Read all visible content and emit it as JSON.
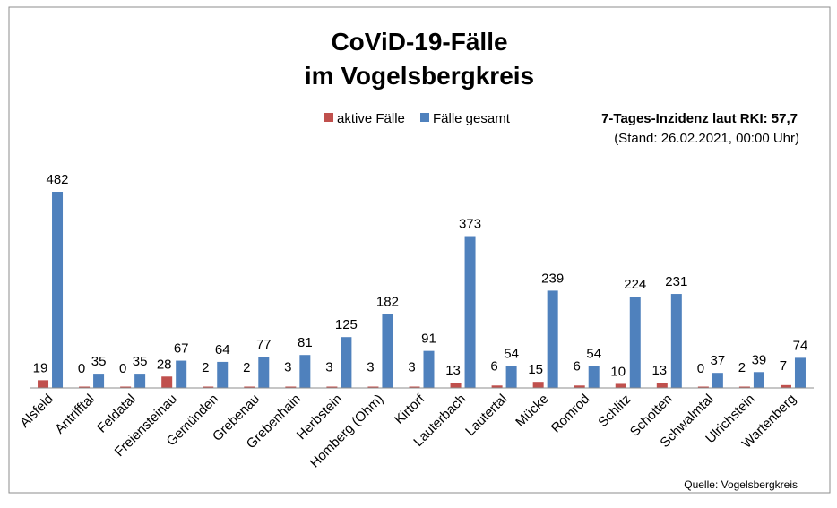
{
  "chart_data": {
    "type": "bar",
    "title": [
      "CoViD-19-Fälle",
      "im Vogelsbergkreis"
    ],
    "categories": [
      "Alsfeld",
      "Antrifftal",
      "Feldatal",
      "Freiensteinau",
      "Gemünden",
      "Grebenau",
      "Grebenhain",
      "Herbstein",
      "Homberg (Ohm)",
      "Kirtorf",
      "Lauterbach",
      "Lautertal",
      "Mücke",
      "Romrod",
      "Schlitz",
      "Schotten",
      "Schwalmtal",
      "Ulrichstein",
      "Wartenberg"
    ],
    "series": [
      {
        "name": "aktive Fälle",
        "color": "#c0504d",
        "values": [
          19,
          0,
          0,
          28,
          2,
          2,
          3,
          3,
          3,
          3,
          13,
          6,
          15,
          6,
          10,
          13,
          0,
          2,
          7
        ]
      },
      {
        "name": "Fälle gesamt",
        "color": "#4f81bd",
        "values": [
          482,
          35,
          35,
          67,
          64,
          77,
          81,
          125,
          182,
          91,
          373,
          54,
          239,
          54,
          224,
          231,
          37,
          39,
          74
        ]
      }
    ],
    "ylim": [
      0,
      482
    ],
    "grid": false,
    "legend": "top-center",
    "annotation": {
      "incidence": "7-Tages-Inzidenz laut RKI: 57,7",
      "stand": "(Stand: 26.02.2021, 00:00 Uhr)"
    },
    "source": "Quelle: Vogelsbergkreis"
  }
}
